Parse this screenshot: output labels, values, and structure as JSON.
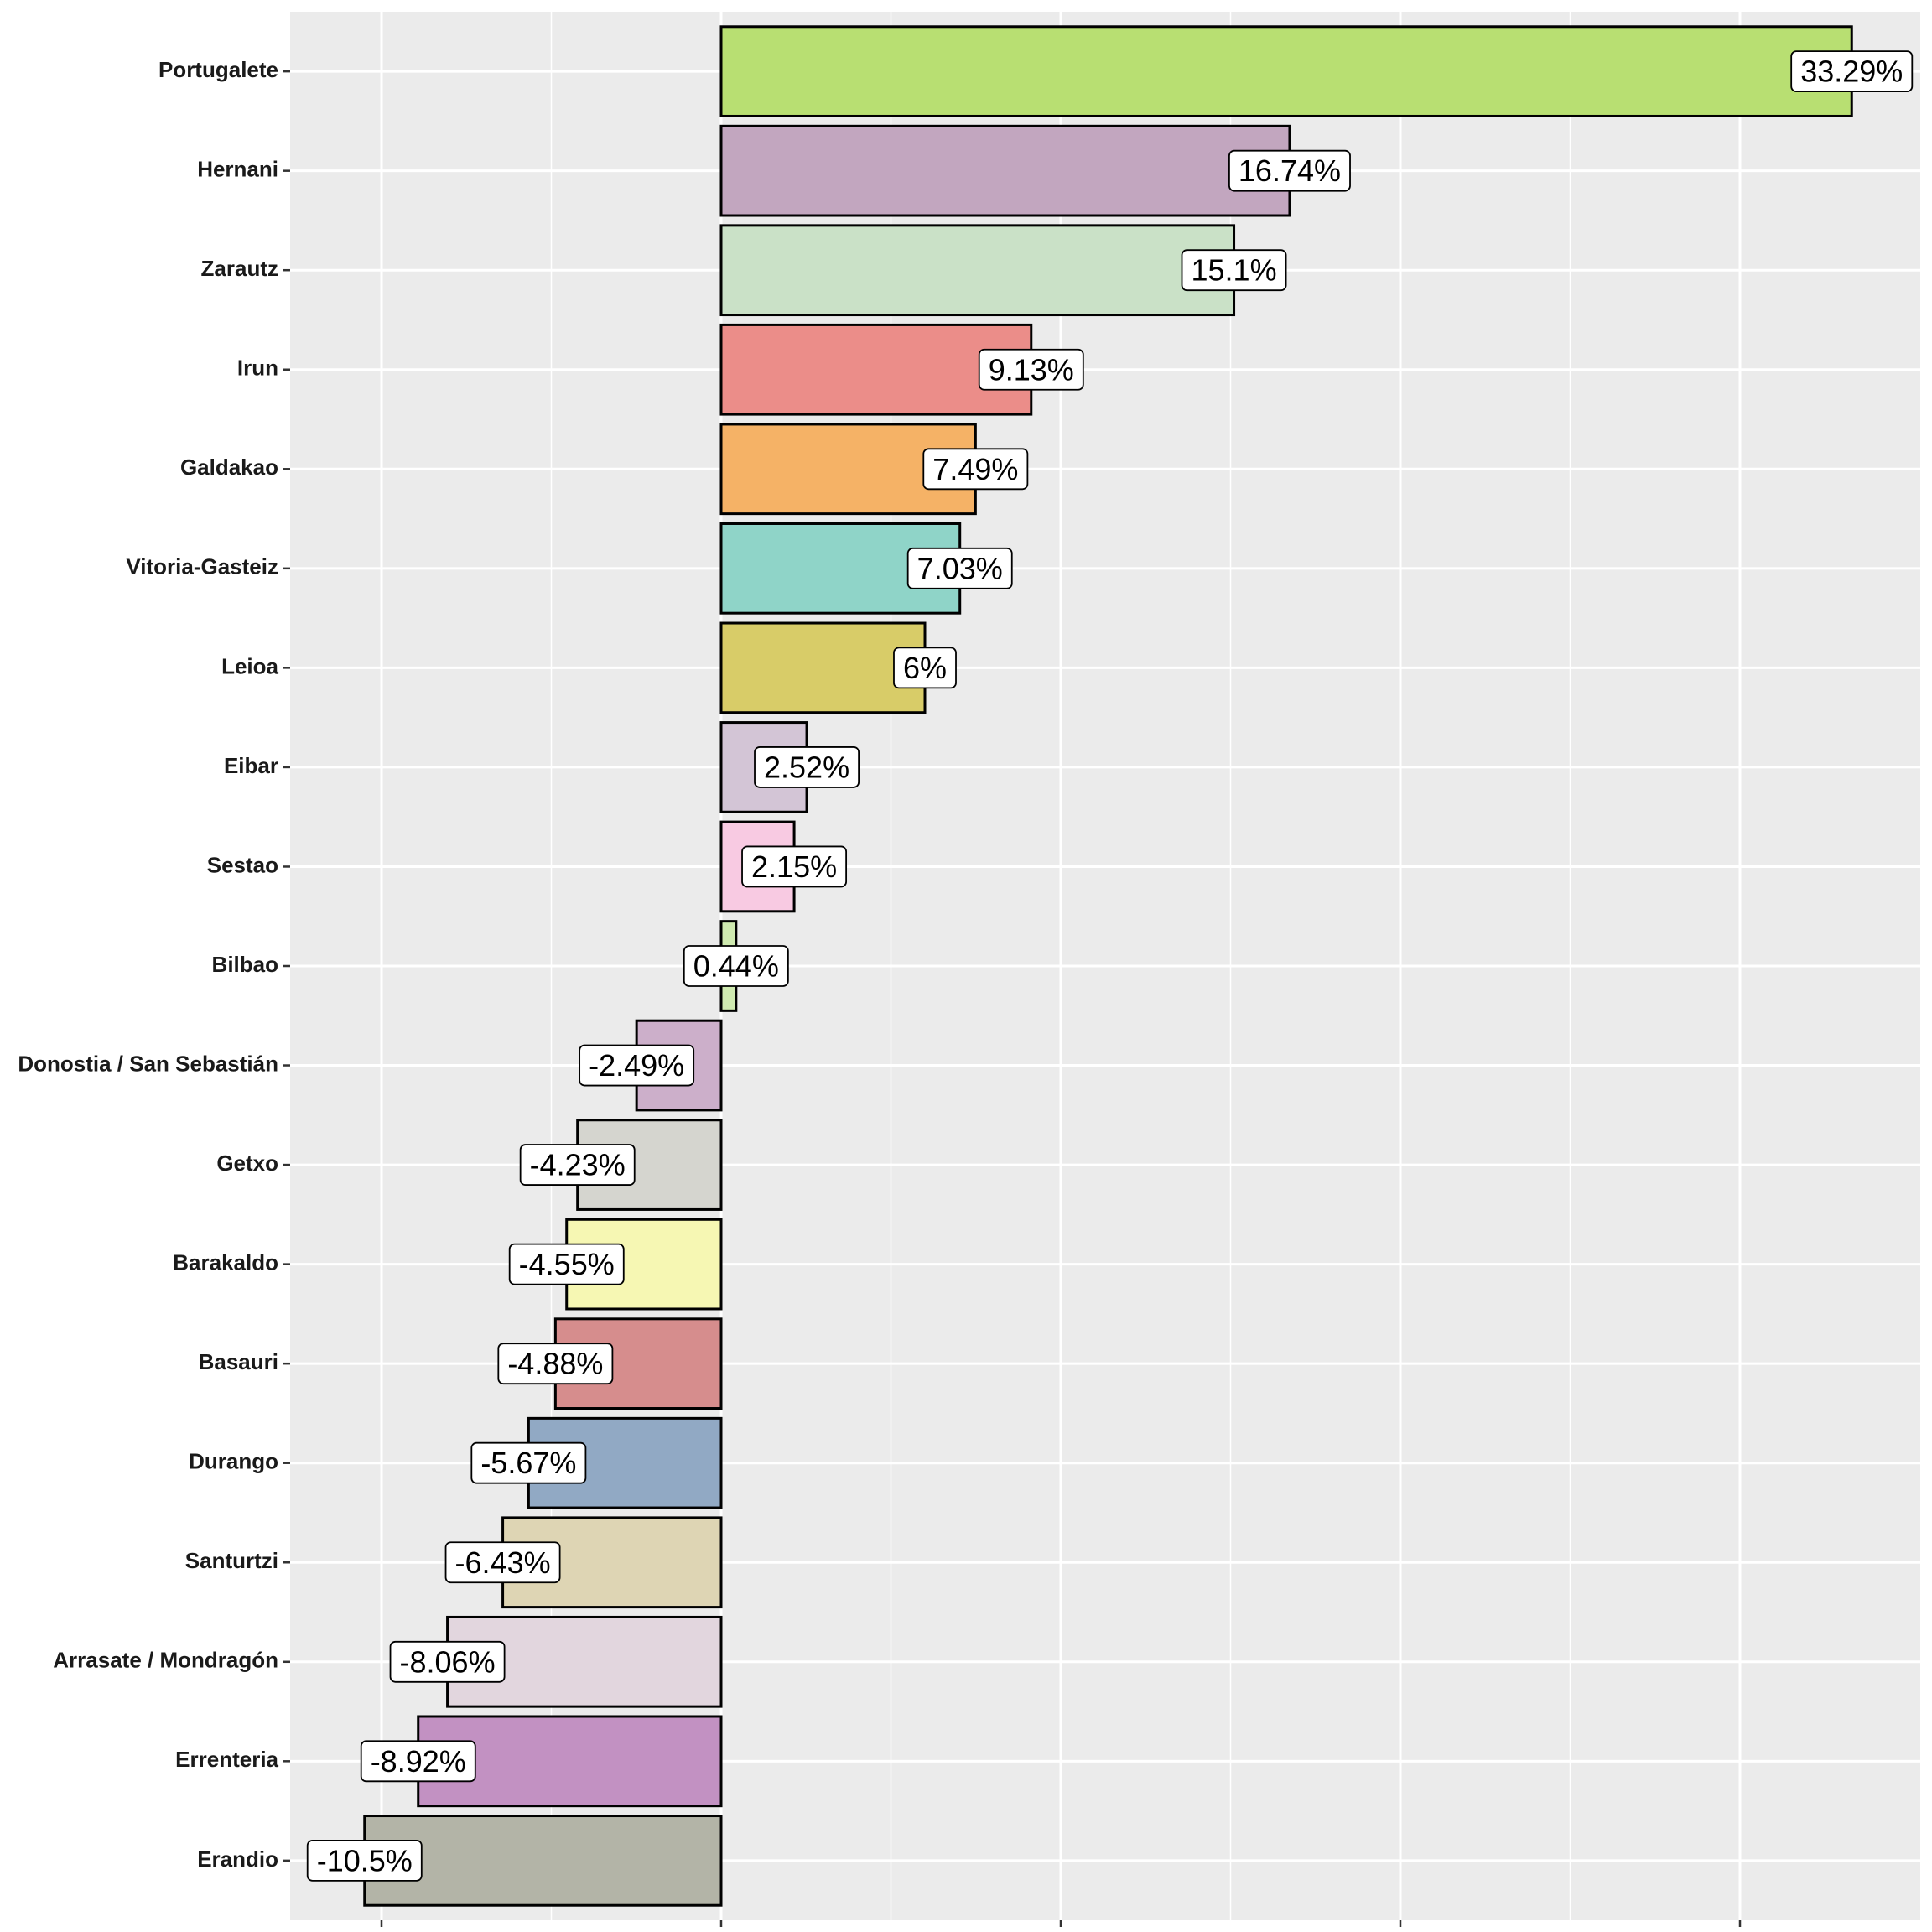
{
  "chart_data": {
    "type": "bar",
    "orientation": "horizontal",
    "title": "",
    "xlabel": "",
    "ylabel": "",
    "xlim": [
      -12.0,
      35.0
    ],
    "x_major_ticks": [
      -10,
      0,
      10,
      20,
      30
    ],
    "x_minor_ticks": [
      -5,
      5,
      15,
      25
    ],
    "x_tick_labels_shown": false,
    "grid": true,
    "legend": "none",
    "categories": [
      "Portugalete",
      "Hernani",
      "Zarautz",
      "Irun",
      "Galdakao",
      "Vitoria-Gasteiz",
      "Leioa",
      "Eibar",
      "Sestao",
      "Bilbao",
      "Donostia / San Sebastián",
      "Getxo",
      "Barakaldo",
      "Basauri",
      "Durango",
      "Santurtzi",
      "Arrasate / Mondragón",
      "Errenteria",
      "Erandio"
    ],
    "values": [
      33.29,
      16.74,
      15.1,
      9.13,
      7.49,
      7.03,
      6,
      2.52,
      2.15,
      0.44,
      -2.49,
      -4.23,
      -4.55,
      -4.88,
      -5.67,
      -6.43,
      -8.06,
      -8.92,
      -10.5
    ],
    "labels": [
      "33.29%",
      "16.74%",
      "15.1%",
      "9.13%",
      "7.49%",
      "7.03%",
      "6%",
      "2.52%",
      "2.15%",
      "0.44%",
      "-2.49%",
      "-4.23%",
      "-4.55%",
      "-4.88%",
      "-5.67%",
      "-6.43%",
      "-8.06%",
      "-8.92%",
      "-10.5%"
    ],
    "colors": [
      "#b8df72",
      "#c2a6bf",
      "#cae1c7",
      "#eb8d89",
      "#f5b266",
      "#8fd4c8",
      "#d8cc68",
      "#d3c5d6",
      "#f8cae2",
      "#cfeab0",
      "#ccafca",
      "#d5d5cf",
      "#f6f7b3",
      "#d68d8d",
      "#91a9c4",
      "#ded5b4",
      "#e2d6de",
      "#c291c2",
      "#b3b4a7"
    ]
  }
}
